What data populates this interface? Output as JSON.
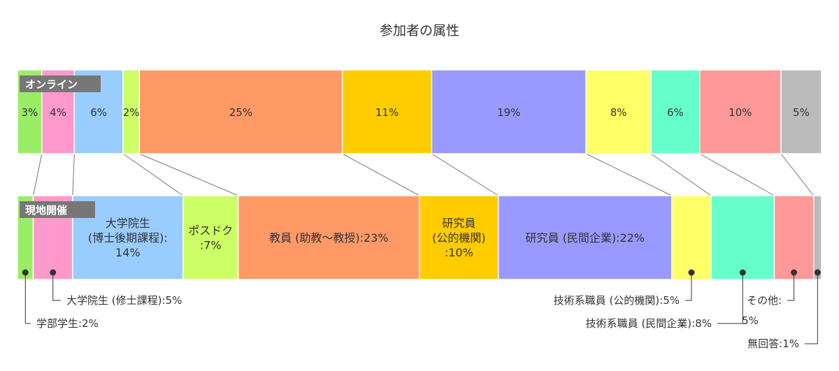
{
  "chart_data": {
    "type": "stacked-bar",
    "title": "参加者の属性",
    "rows": [
      {
        "name": "オンライン",
        "segments": [
          {
            "key": "undergrad",
            "value": 3,
            "label": "3%",
            "color": "#99ee66"
          },
          {
            "key": "master",
            "value": 4,
            "label": "4%",
            "color": "#ff99cc"
          },
          {
            "key": "doctor",
            "value": 6,
            "label": "6%",
            "color": "#99ccff"
          },
          {
            "key": "postdoc",
            "value": 2,
            "label": "2%",
            "color": "#ccff66"
          },
          {
            "key": "faculty",
            "value": 25,
            "label": "25%",
            "color": "#ff9966"
          },
          {
            "key": "researcher-public",
            "value": 11,
            "label": "11%",
            "color": "#ffcc00"
          },
          {
            "key": "researcher-private",
            "value": 19,
            "label": "19%",
            "color": "#9999ff"
          },
          {
            "key": "tech-public",
            "value": 8,
            "label": "8%",
            "color": "#ffff66"
          },
          {
            "key": "tech-private",
            "value": 6,
            "label": "6%",
            "color": "#66ffcc"
          },
          {
            "key": "other",
            "value": 10,
            "label": "10%",
            "color": "#ff9999"
          },
          {
            "key": "no-answer",
            "value": 5,
            "label": "5%",
            "color": "#bbbbbb"
          }
        ]
      },
      {
        "name": "現地開催",
        "segments": [
          {
            "key": "undergrad",
            "value": 2,
            "color": "#99ee66"
          },
          {
            "key": "master",
            "value": 5,
            "color": "#ff99cc"
          },
          {
            "key": "doctor",
            "value": 14,
            "lines": [
              "大学院生",
              "(博士後期課程):",
              "14%"
            ],
            "color": "#99ccff"
          },
          {
            "key": "postdoc",
            "value": 7,
            "lines": [
              "ポスドク",
              ":7%"
            ],
            "color": "#ccff66"
          },
          {
            "key": "faculty",
            "value": 23,
            "lines": [
              "教員 (助教〜教授):23%"
            ],
            "color": "#ff9966"
          },
          {
            "key": "researcher-public",
            "value": 10,
            "lines": [
              "研究員",
              "(公的機関)",
              ":10%"
            ],
            "color": "#ffcc00"
          },
          {
            "key": "researcher-private",
            "value": 22,
            "lines": [
              "研究員 (民間企業):22%"
            ],
            "color": "#9999ff"
          },
          {
            "key": "tech-public",
            "value": 5,
            "color": "#ffff66"
          },
          {
            "key": "tech-private",
            "value": 8,
            "color": "#66ffcc"
          },
          {
            "key": "other",
            "value": 5,
            "color": "#ff9999"
          },
          {
            "key": "no-answer",
            "value": 1,
            "color": "#bbbbbb"
          }
        ]
      }
    ],
    "callouts": [
      {
        "key": "master",
        "lines": [
          "大学院生 (修士課程):5%"
        ]
      },
      {
        "key": "undergrad",
        "lines": [
          "学部学生:2%"
        ]
      },
      {
        "key": "tech-public",
        "lines": [
          "技術系職員 (公的機関):5%"
        ]
      },
      {
        "key": "tech-private",
        "lines": [
          "技術系職員 (民間企業):8%"
        ]
      },
      {
        "key": "other",
        "lines": [
          "その他:",
          "5%"
        ]
      },
      {
        "key": "no-answer",
        "lines": [
          "無回答:1%"
        ]
      }
    ]
  }
}
